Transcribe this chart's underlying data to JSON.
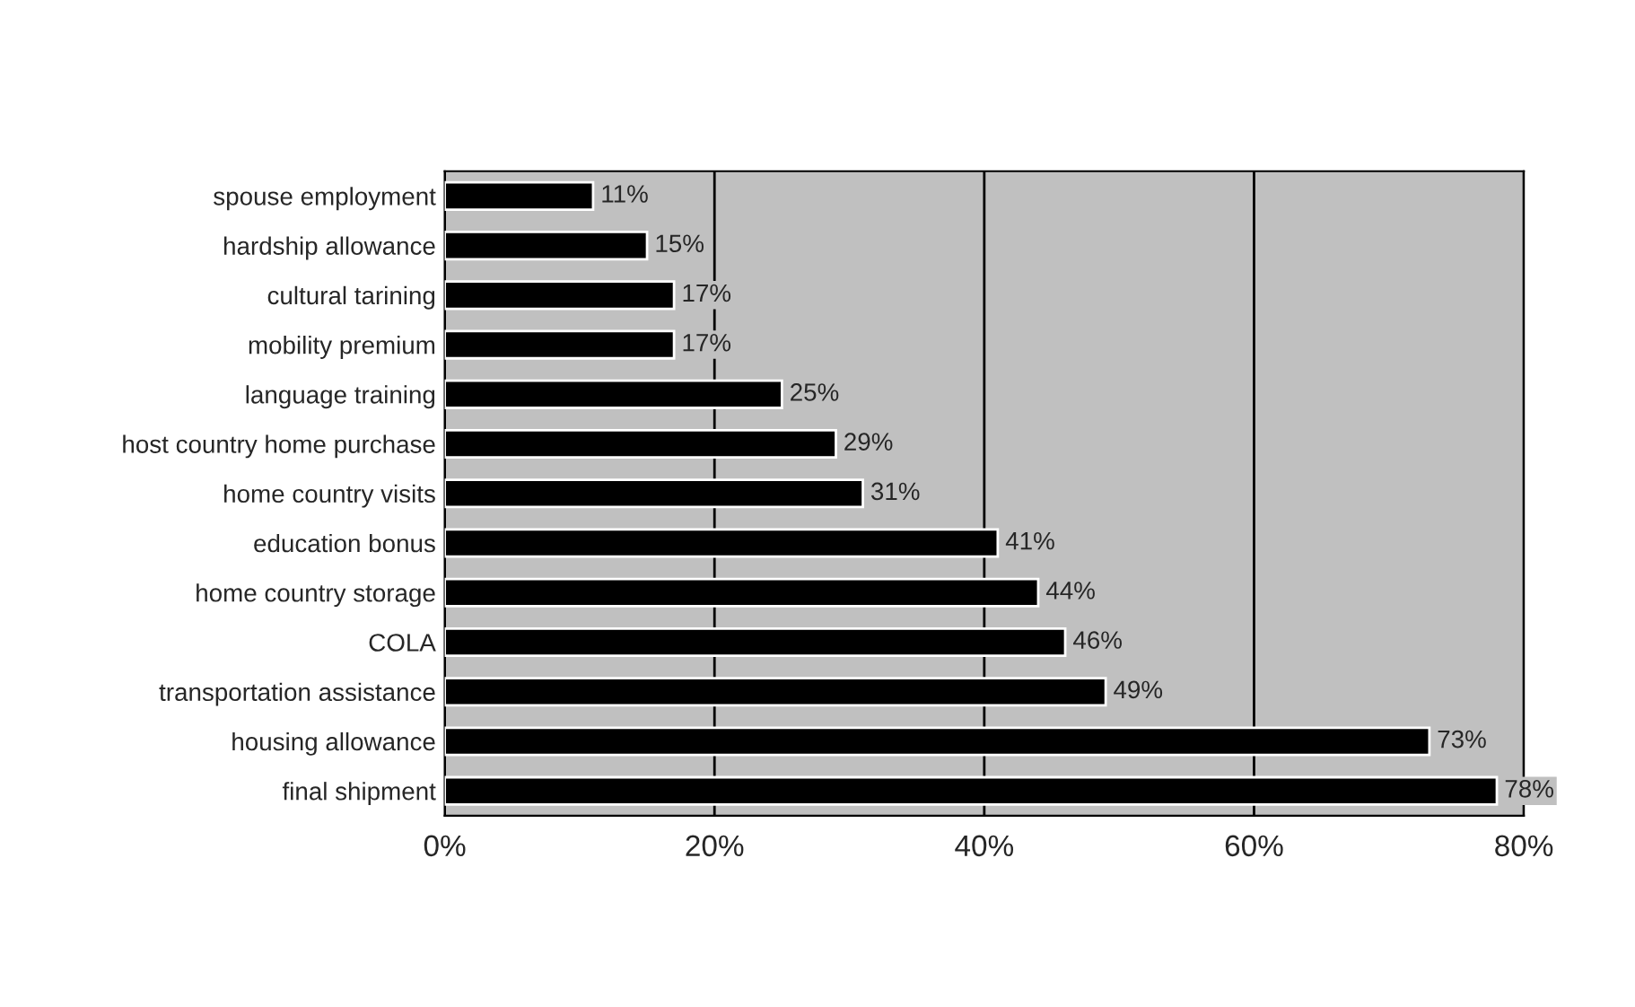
{
  "chart_data": {
    "type": "bar",
    "orientation": "horizontal",
    "categories": [
      "spouse employment",
      "hardship allowance",
      "cultural tarining",
      "mobility premium",
      "language training",
      "host country home purchase",
      "home country visits",
      "education bonus",
      "home country storage",
      "COLA",
      "transportation assistance",
      "housing allowance",
      "final shipment"
    ],
    "values": [
      11,
      15,
      17,
      17,
      25,
      29,
      31,
      41,
      44,
      46,
      49,
      73,
      78
    ],
    "value_labels": [
      "11%",
      "15%",
      "17%",
      "17%",
      "25%",
      "29%",
      "31%",
      "41%",
      "44%",
      "46%",
      "49%",
      "73%",
      "78%"
    ],
    "color": "#000000",
    "xlim": [
      0,
      80
    ],
    "xticks": [
      {
        "value": 0,
        "label": "0%"
      },
      {
        "value": 20,
        "label": "20%"
      },
      {
        "value": 40,
        "label": "40%"
      },
      {
        "value": 60,
        "label": "60%"
      },
      {
        "value": 80,
        "label": "80%"
      }
    ],
    "grid": "x"
  }
}
